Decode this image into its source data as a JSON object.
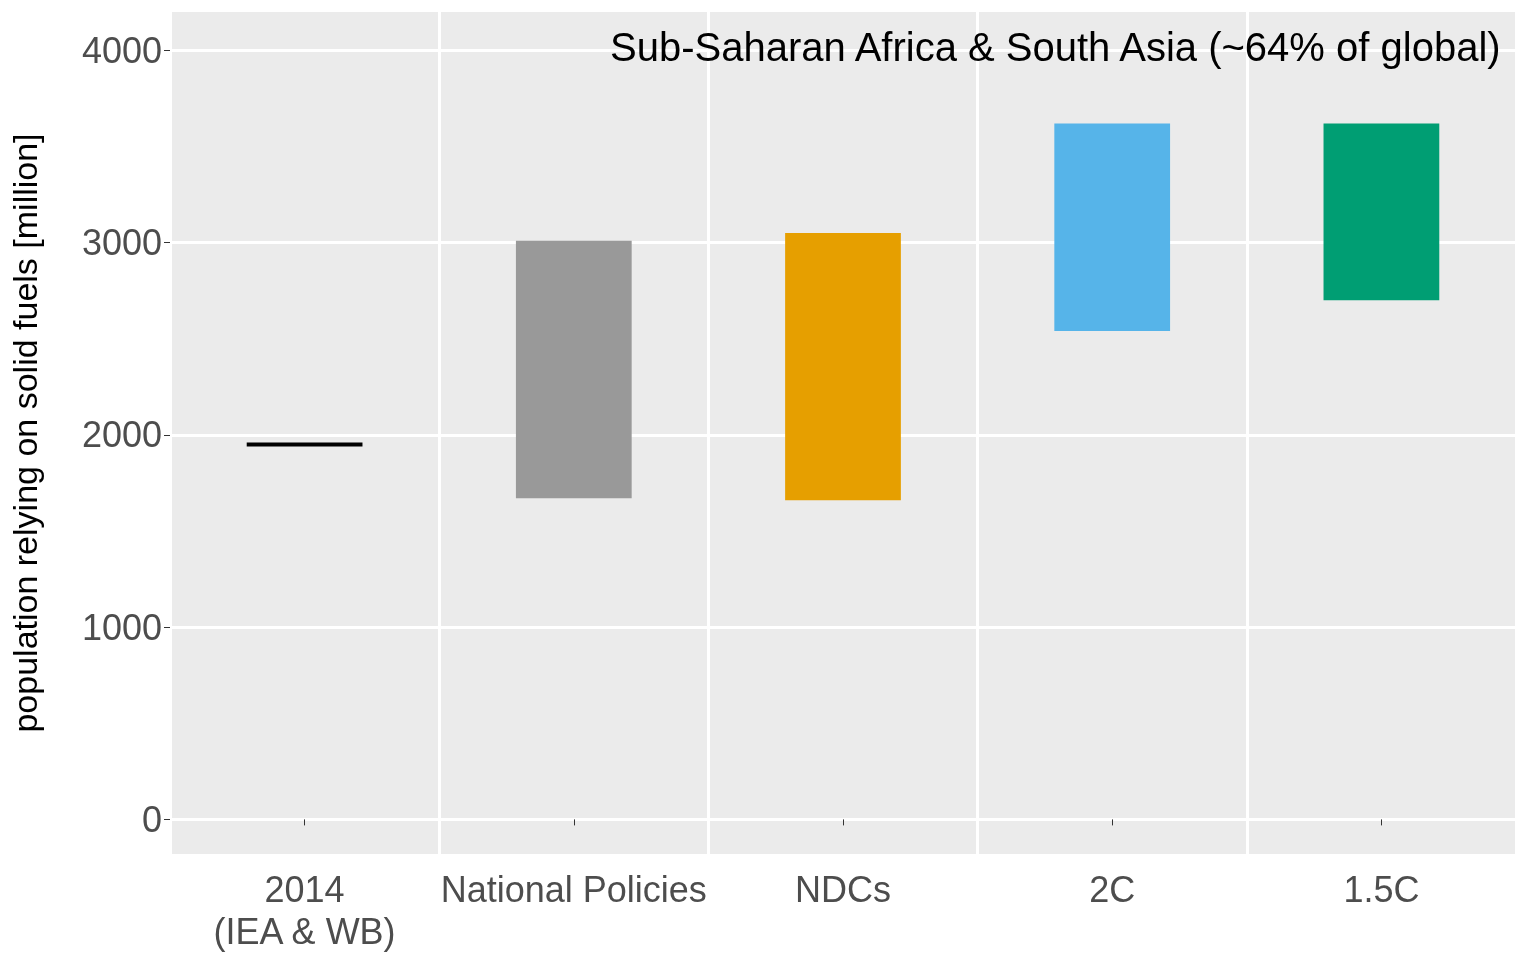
{
  "chart_data": {
    "type": "bar",
    "title": "Sub-Saharan Africa & South Asia (~64% of global)",
    "ylabel": "population relying on solid fuels [million]",
    "categories": [
      "2014\n(IEA & WB)",
      "National Policies",
      "NDCs",
      "2C",
      "1.5C"
    ],
    "base": [
      1940,
      1670,
      1660,
      2540,
      2700
    ],
    "values": [
      20,
      1340,
      1390,
      1080,
      920
    ],
    "colors": [
      "#000000",
      "#999999",
      "#e69f00",
      "#56b4e9",
      "#009e73"
    ],
    "ylim": [
      -180,
      4200
    ],
    "yticks": [
      0,
      1000,
      2000,
      3000,
      4000
    ],
    "grid": true
  }
}
